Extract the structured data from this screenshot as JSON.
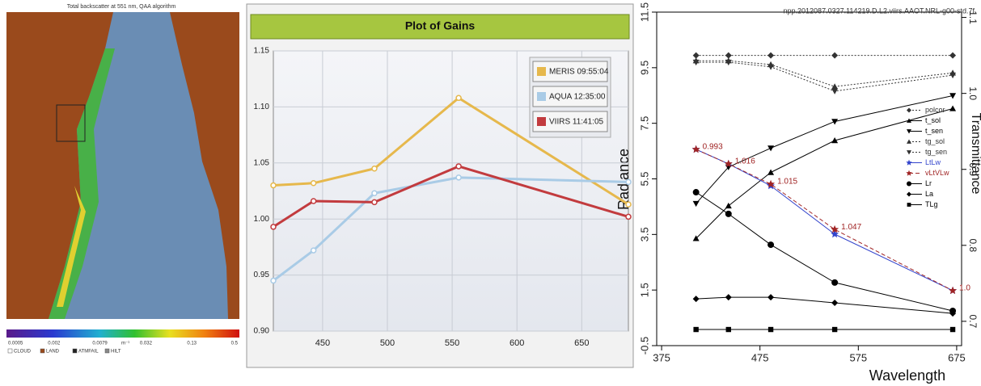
{
  "map": {
    "title": "Total backscatter at 551 nm, QAA algorithm",
    "colorbar": {
      "ticks": [
        "0.0005",
        "0.002",
        "0.0079",
        "0.032",
        "0.13",
        "0.5"
      ],
      "unit": "m⁻¹"
    },
    "flags": [
      "CLOUD",
      "LAND",
      "ATMFAIL",
      "HILT"
    ]
  },
  "chart_data": [
    {
      "type": "line",
      "title": "Plot of Gains",
      "x": [
        412,
        443,
        490,
        555,
        686
      ],
      "xlim": [
        412,
        686
      ],
      "xticks": [
        450,
        500,
        550,
        600,
        650
      ],
      "ylim": [
        0.9,
        1.15
      ],
      "yticks": [
        {
          "value": 0.9,
          "label": "0.90"
        },
        0.95,
        {
          "value": 1,
          "label": "1.00"
        },
        1.05,
        {
          "value": 1.1,
          "label": "1.10"
        },
        1.15
      ],
      "grid": true,
      "legend": "upper right",
      "series": [
        {
          "name": "MERIS 09:55:04",
          "color": "#e6b84c",
          "values": [
            1.03,
            1.032,
            1.045,
            1.108,
            1.013
          ]
        },
        {
          "name": "AQUA 12:35:00",
          "color": "#a9cbe6",
          "values": [
            0.945,
            0.972,
            1.023,
            1.037,
            1.033
          ]
        },
        {
          "name": "VIIRS 11:41:05",
          "color": "#c23b3e",
          "values": [
            0.993,
            1.016,
            1.015,
            1.047,
            1.002
          ]
        }
      ]
    },
    {
      "type": "line",
      "title": "npp.2012087.0327.114219.D.L2.viirs.AAOT.NRL-g00-std.7f",
      "xlabel": "Wavelength",
      "ylabel": "Radiance",
      "y2label": "Transmittance",
      "x": [
        410,
        443,
        486,
        551,
        671
      ],
      "xlim": [
        370,
        680
      ],
      "xticks": [
        375,
        475,
        575,
        675
      ],
      "ylim": [
        -0.5,
        11.5
      ],
      "yticks": [
        -0.5,
        1.5,
        3.5,
        5.5,
        7.5,
        9.5,
        11.5
      ],
      "y2lim": [
        0.668,
        1.107
      ],
      "y2ticks": [
        0.7,
        0.8,
        0.9,
        {
          "value": 1,
          "label": "1.0"
        },
        1.1
      ],
      "grid": false,
      "legend": "center right",
      "series": [
        {
          "name": "polcor",
          "color": "#333333",
          "marker": "diamond",
          "dash": "dotted",
          "axis": "y2",
          "values": [
            1.05,
            1.05,
            1.05,
            1.05,
            1.05
          ]
        },
        {
          "name": "t_sol",
          "color": "#000000",
          "marker": "triangle-up",
          "dash": "solid",
          "axis": "y2",
          "values": [
            0.809,
            0.852,
            0.896,
            0.938,
            0.98
          ]
        },
        {
          "name": "t_sen",
          "color": "#000000",
          "marker": "triangle-down",
          "dash": "solid",
          "axis": "y2",
          "values": [
            0.855,
            0.903,
            0.928,
            0.963,
            0.997
          ]
        },
        {
          "name": "tg_sol",
          "color": "#333333",
          "marker": "triangle-up",
          "dash": "dotted",
          "axis": "y2",
          "values": [
            1.043,
            1.043,
            1.038,
            1.009,
            1.027
          ]
        },
        {
          "name": "tg_sen",
          "color": "#333333",
          "marker": "triangle-down",
          "dash": "dotted",
          "axis": "y2",
          "values": [
            1.041,
            1.041,
            1.035,
            1.003,
            1.024
          ]
        },
        {
          "name": "LtLw",
          "color": "#3344cc",
          "marker": "star",
          "dash": "solid",
          "values": [
            6.56,
            6.04,
            5.25,
            3.51,
            1.48
          ]
        },
        {
          "name": "vLtVLw",
          "color": "#a02424",
          "marker": "star",
          "dash": "dashed",
          "values": [
            6.56,
            6.04,
            5.31,
            3.68,
            1.48
          ],
          "annotations": [
            "0.993",
            "1.016",
            "1.015",
            "1.047",
            "1.0"
          ]
        },
        {
          "name": "Lr",
          "color": "#000000",
          "marker": "circle",
          "dash": "solid",
          "values": [
            5.02,
            4.24,
            3.13,
            1.77,
            0.75
          ]
        },
        {
          "name": "La",
          "color": "#000000",
          "marker": "diamond",
          "dash": "solid",
          "values": [
            1.18,
            1.24,
            1.24,
            1.04,
            0.66
          ]
        },
        {
          "name": "TLg",
          "color": "#000000",
          "marker": "square",
          "dash": "solid",
          "values": [
            0.08,
            0.08,
            0.08,
            0.08,
            0.08
          ]
        }
      ]
    }
  ]
}
